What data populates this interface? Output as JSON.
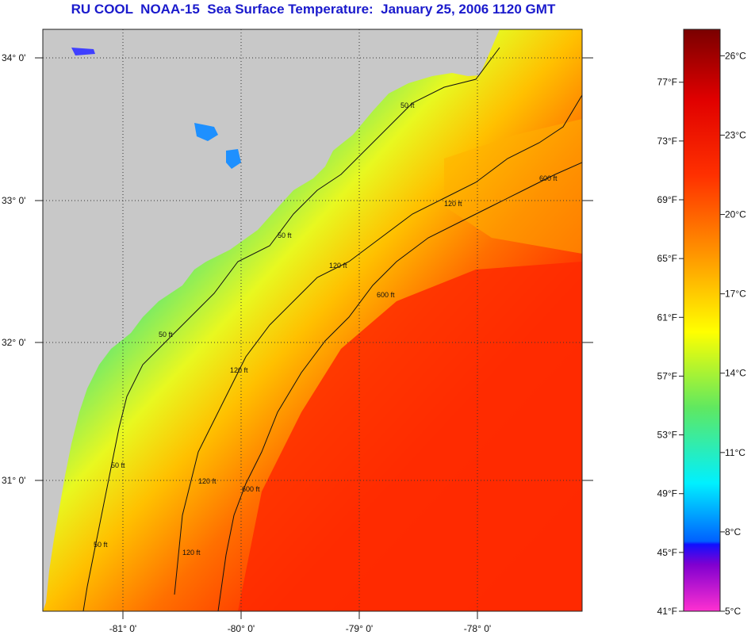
{
  "title": "RU COOL  NOAA-15  Sea Surface Temperature:  January 25, 2006 1120 GMT",
  "map": {
    "lat_labels": [
      "34° 0'",
      "33° 0'",
      "32° 0'",
      "31° 0'"
    ],
    "lon_labels": [
      "-81° 0'",
      "-80° 0'",
      "-79° 0'",
      "-78° 0'"
    ],
    "contour_labels": {
      "c50": "50 ft",
      "c120": "120 ft",
      "c600": "600 ft"
    }
  },
  "colorbar": {
    "fahrenheit": [
      "77°F",
      "73°F",
      "69°F",
      "65°F",
      "61°F",
      "57°F",
      "53°F",
      "49°F",
      "45°F",
      "41°F"
    ],
    "celsius": [
      "26°C",
      "23°C",
      "20°C",
      "17°C",
      "14°C",
      "11°C",
      "8°C",
      "5°C"
    ],
    "colors": {
      "top": "#7a0000",
      "red": "#ff1a00",
      "orange": "#ff8c00",
      "yellow": "#ffff00",
      "green": "#66ee44",
      "cyan": "#00f0ff",
      "blue": "#0000ff",
      "purple": "#8800cc",
      "magenta": "#ff30d0"
    }
  }
}
